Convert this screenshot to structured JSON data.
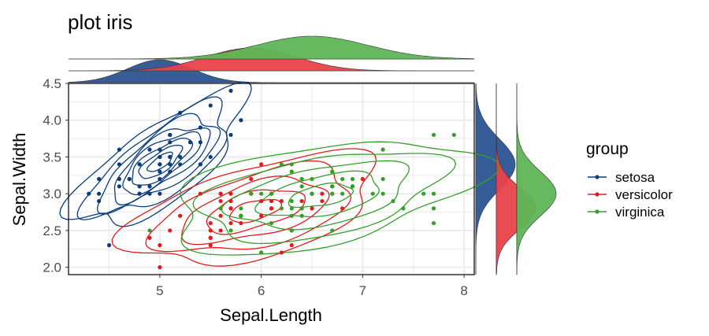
{
  "chart_data": {
    "type": "scatter",
    "title": "plot iris",
    "xlabel": "Sepal.Length",
    "ylabel": "Sepal.Width",
    "xlim": [
      4.1,
      8.1
    ],
    "ylim": [
      1.9,
      4.5
    ],
    "xticks": [
      "5",
      "6",
      "7",
      "8"
    ],
    "yticks": [
      "2.0",
      "2.5",
      "3.0",
      "3.5",
      "4.0",
      "4.5"
    ],
    "grid": true,
    "overlays": [
      "2d density contours per group",
      "marginal density curves (top: Sepal.Length, right: Sepal.Width)"
    ],
    "legend": {
      "title": "group",
      "position": "right"
    },
    "series": [
      {
        "name": "setosa",
        "color": "#0b3c7c",
        "points": [
          [
            5.1,
            3.5
          ],
          [
            4.9,
            3.0
          ],
          [
            4.7,
            3.2
          ],
          [
            4.6,
            3.1
          ],
          [
            5.0,
            3.6
          ],
          [
            5.4,
            3.9
          ],
          [
            4.6,
            3.4
          ],
          [
            5.0,
            3.4
          ],
          [
            4.4,
            2.9
          ],
          [
            4.9,
            3.1
          ],
          [
            5.4,
            3.7
          ],
          [
            4.8,
            3.4
          ],
          [
            4.8,
            3.0
          ],
          [
            4.3,
            3.0
          ],
          [
            5.8,
            4.0
          ],
          [
            5.7,
            4.4
          ],
          [
            5.4,
            3.9
          ],
          [
            5.1,
            3.5
          ],
          [
            5.7,
            3.8
          ],
          [
            5.1,
            3.8
          ],
          [
            5.4,
            3.4
          ],
          [
            5.1,
            3.7
          ],
          [
            4.6,
            3.6
          ],
          [
            5.1,
            3.3
          ],
          [
            4.8,
            3.4
          ],
          [
            5.0,
            3.0
          ],
          [
            5.0,
            3.4
          ],
          [
            5.2,
            3.5
          ],
          [
            5.2,
            3.4
          ],
          [
            4.7,
            3.2
          ],
          [
            4.8,
            3.1
          ],
          [
            5.4,
            3.4
          ],
          [
            5.2,
            4.1
          ],
          [
            5.5,
            4.2
          ],
          [
            4.9,
            3.1
          ],
          [
            5.0,
            3.2
          ],
          [
            5.5,
            3.5
          ],
          [
            4.9,
            3.6
          ],
          [
            4.4,
            3.0
          ],
          [
            5.1,
            3.4
          ],
          [
            5.0,
            3.5
          ],
          [
            4.5,
            2.3
          ],
          [
            4.4,
            3.2
          ],
          [
            5.0,
            3.5
          ],
          [
            5.1,
            3.8
          ],
          [
            4.8,
            3.0
          ],
          [
            5.1,
            3.8
          ],
          [
            4.6,
            3.2
          ],
          [
            5.3,
            3.7
          ],
          [
            5.0,
            3.3
          ]
        ],
        "density_x": {
          "peak": 5.0,
          "sd": 0.32
        },
        "density_y": {
          "peak": 3.4,
          "sd": 0.34
        }
      },
      {
        "name": "versicolor",
        "color": "#e31a1c",
        "points": [
          [
            7.0,
            3.2
          ],
          [
            6.4,
            3.2
          ],
          [
            6.9,
            3.1
          ],
          [
            5.5,
            2.3
          ],
          [
            6.5,
            2.8
          ],
          [
            5.7,
            2.8
          ],
          [
            6.3,
            3.3
          ],
          [
            4.9,
            2.4
          ],
          [
            6.6,
            2.9
          ],
          [
            5.2,
            2.7
          ],
          [
            5.0,
            2.0
          ],
          [
            5.9,
            3.0
          ],
          [
            6.0,
            2.2
          ],
          [
            6.1,
            2.9
          ],
          [
            5.6,
            2.9
          ],
          [
            6.7,
            3.1
          ],
          [
            5.6,
            3.0
          ],
          [
            5.8,
            2.7
          ],
          [
            6.2,
            2.2
          ],
          [
            5.6,
            2.5
          ],
          [
            5.9,
            3.2
          ],
          [
            6.1,
            2.8
          ],
          [
            6.3,
            2.5
          ],
          [
            6.1,
            2.8
          ],
          [
            6.4,
            2.9
          ],
          [
            6.6,
            3.0
          ],
          [
            6.8,
            2.8
          ],
          [
            6.7,
            3.0
          ],
          [
            6.0,
            2.9
          ],
          [
            5.7,
            2.6
          ],
          [
            5.5,
            2.4
          ],
          [
            5.5,
            2.4
          ],
          [
            5.8,
            2.7
          ],
          [
            6.0,
            2.7
          ],
          [
            5.4,
            3.0
          ],
          [
            6.0,
            3.4
          ],
          [
            6.7,
            3.1
          ],
          [
            6.3,
            2.3
          ],
          [
            5.6,
            3.0
          ],
          [
            5.5,
            2.5
          ],
          [
            5.5,
            2.6
          ],
          [
            6.1,
            3.0
          ],
          [
            5.8,
            2.6
          ],
          [
            5.0,
            2.3
          ],
          [
            5.6,
            2.7
          ],
          [
            5.7,
            3.0
          ],
          [
            5.7,
            2.9
          ],
          [
            6.2,
            2.9
          ],
          [
            5.1,
            2.5
          ],
          [
            5.7,
            2.8
          ]
        ],
        "density_x": {
          "peak": 5.9,
          "sd": 0.45
        },
        "density_y": {
          "peak": 2.8,
          "sd": 0.28
        }
      },
      {
        "name": "virginica",
        "color": "#33a02c",
        "points": [
          [
            6.3,
            3.3
          ],
          [
            5.8,
            2.7
          ],
          [
            7.1,
            3.0
          ],
          [
            6.3,
            2.9
          ],
          [
            6.5,
            3.0
          ],
          [
            7.6,
            3.0
          ],
          [
            4.9,
            2.5
          ],
          [
            7.3,
            2.9
          ],
          [
            6.7,
            2.5
          ],
          [
            7.2,
            3.6
          ],
          [
            6.5,
            3.2
          ],
          [
            6.4,
            2.7
          ],
          [
            6.8,
            3.0
          ],
          [
            5.7,
            2.5
          ],
          [
            5.8,
            2.8
          ],
          [
            6.4,
            3.2
          ],
          [
            6.5,
            3.0
          ],
          [
            7.7,
            3.8
          ],
          [
            7.7,
            2.6
          ],
          [
            6.0,
            2.2
          ],
          [
            6.9,
            3.2
          ],
          [
            5.6,
            2.8
          ],
          [
            7.7,
            2.8
          ],
          [
            6.3,
            2.7
          ],
          [
            6.7,
            3.3
          ],
          [
            7.2,
            3.2
          ],
          [
            6.2,
            2.8
          ],
          [
            6.1,
            3.0
          ],
          [
            6.4,
            2.8
          ],
          [
            7.2,
            3.0
          ],
          [
            7.4,
            2.8
          ],
          [
            7.9,
            3.8
          ],
          [
            6.4,
            2.8
          ],
          [
            6.3,
            2.8
          ],
          [
            6.1,
            2.6
          ],
          [
            7.7,
            3.0
          ],
          [
            6.3,
            3.4
          ],
          [
            6.4,
            3.1
          ],
          [
            6.0,
            3.0
          ],
          [
            6.9,
            3.1
          ],
          [
            6.7,
            3.1
          ],
          [
            6.9,
            3.1
          ],
          [
            5.8,
            2.7
          ],
          [
            6.8,
            3.2
          ],
          [
            6.7,
            3.3
          ],
          [
            6.7,
            3.0
          ],
          [
            6.3,
            2.5
          ],
          [
            6.5,
            3.0
          ],
          [
            6.2,
            3.4
          ],
          [
            5.9,
            3.0
          ]
        ],
        "density_x": {
          "peak": 6.5,
          "sd": 0.55
        },
        "density_y": {
          "peak": 3.0,
          "sd": 0.3
        }
      }
    ]
  }
}
